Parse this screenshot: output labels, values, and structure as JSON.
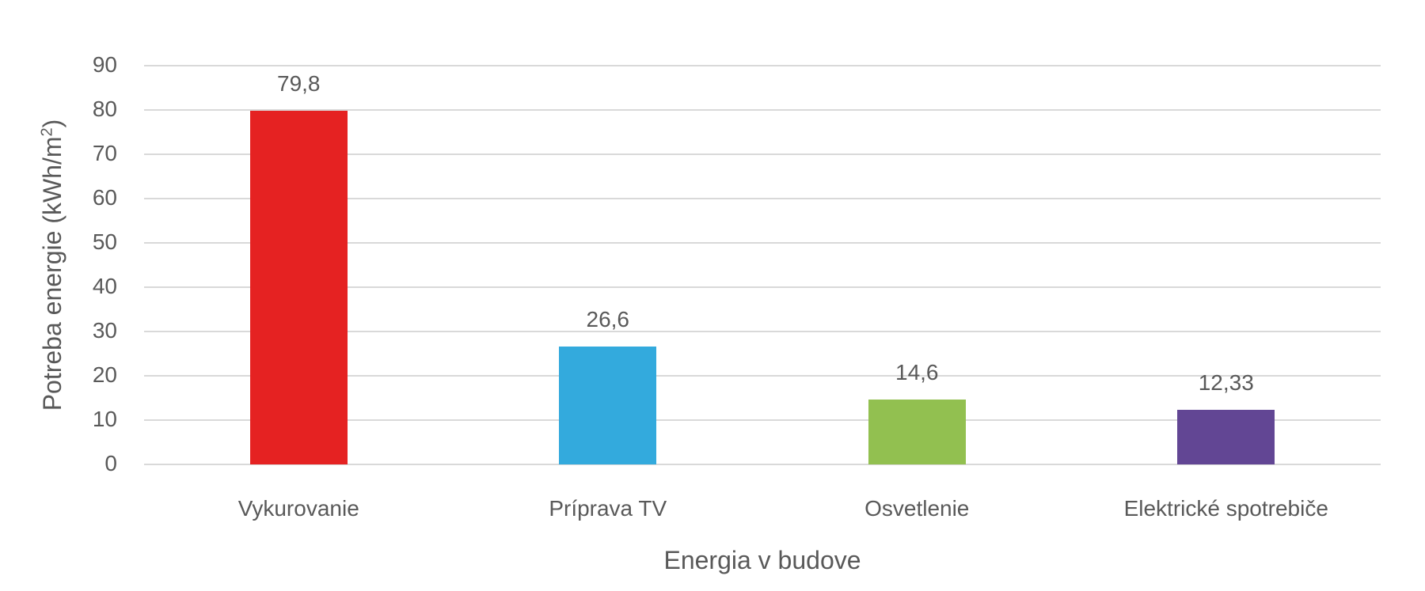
{
  "chart_data": {
    "type": "bar",
    "title": "",
    "xlabel": "Energia v budove",
    "ylabel": "Potreba energie (kWh/m²)",
    "ylabel_base": "Potreba energie (kWh/m",
    "ylabel_sup": "2",
    "ylabel_end": ")",
    "categories": [
      "Vykurovanie",
      "Príprava TV",
      "Osvetlenie",
      "Elektrické spotrebiče"
    ],
    "values": [
      79.8,
      26.6,
      14.6,
      12.33
    ],
    "value_labels": [
      "79,8",
      "26,6",
      "14,6",
      "12,33"
    ],
    "colors": [
      "#e52222",
      "#33aadd",
      "#92c050",
      "#624694"
    ],
    "ylim": [
      0,
      90
    ],
    "yticks": [
      "0",
      "10",
      "20",
      "30",
      "40",
      "50",
      "60",
      "70",
      "80",
      "90"
    ],
    "grid": true,
    "legend": null
  }
}
